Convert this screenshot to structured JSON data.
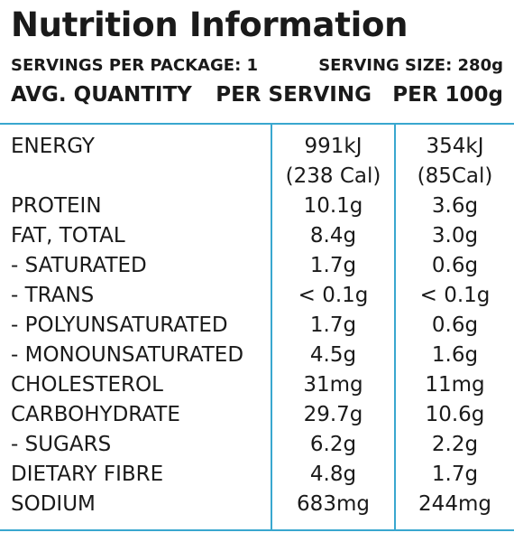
{
  "title": "Nutrition Information",
  "servings_per_package": "SERVINGS PER PACKAGE: 1",
  "serving_size": "SERVING SIZE: 280g",
  "columns": {
    "name": "AVG. QUANTITY",
    "per_serving": "PER SERVING",
    "per_100g": "PER 100g"
  },
  "colors": {
    "rule": "#39a7cf",
    "text": "#1a1a1a"
  },
  "energy": {
    "name": "ENERGY",
    "per_serving_kj": "991kJ",
    "per_serving_cal": "(238 Cal)",
    "per_100g_kj": "354kJ",
    "per_100g_cal": "(85Cal)"
  },
  "rows": [
    {
      "name": "PROTEIN",
      "per_serving": "10.1g",
      "per_100g": "3.6g"
    },
    {
      "name": "FAT, TOTAL",
      "per_serving": "8.4g",
      "per_100g": "3.0g"
    },
    {
      "name": "- SATURATED",
      "per_serving": "1.7g",
      "per_100g": "0.6g"
    },
    {
      "name": "- TRANS",
      "per_serving": "< 0.1g",
      "per_100g": "< 0.1g"
    },
    {
      "name": "- POLYUNSATURATED",
      "per_serving": "1.7g",
      "per_100g": "0.6g"
    },
    {
      "name": "- MONOUNSATURATED",
      "per_serving": "4.5g",
      "per_100g": "1.6g"
    },
    {
      "name": "CHOLESTEROL",
      "per_serving": "31mg",
      "per_100g": "11mg"
    },
    {
      "name": "CARBOHYDRATE",
      "per_serving": "29.7g",
      "per_100g": "10.6g"
    },
    {
      "name": "- SUGARS",
      "per_serving": "6.2g",
      "per_100g": "2.2g"
    },
    {
      "name": "DIETARY FIBRE",
      "per_serving": "4.8g",
      "per_100g": "1.7g"
    },
    {
      "name": "SODIUM",
      "per_serving": "683mg",
      "per_100g": "244mg"
    }
  ]
}
